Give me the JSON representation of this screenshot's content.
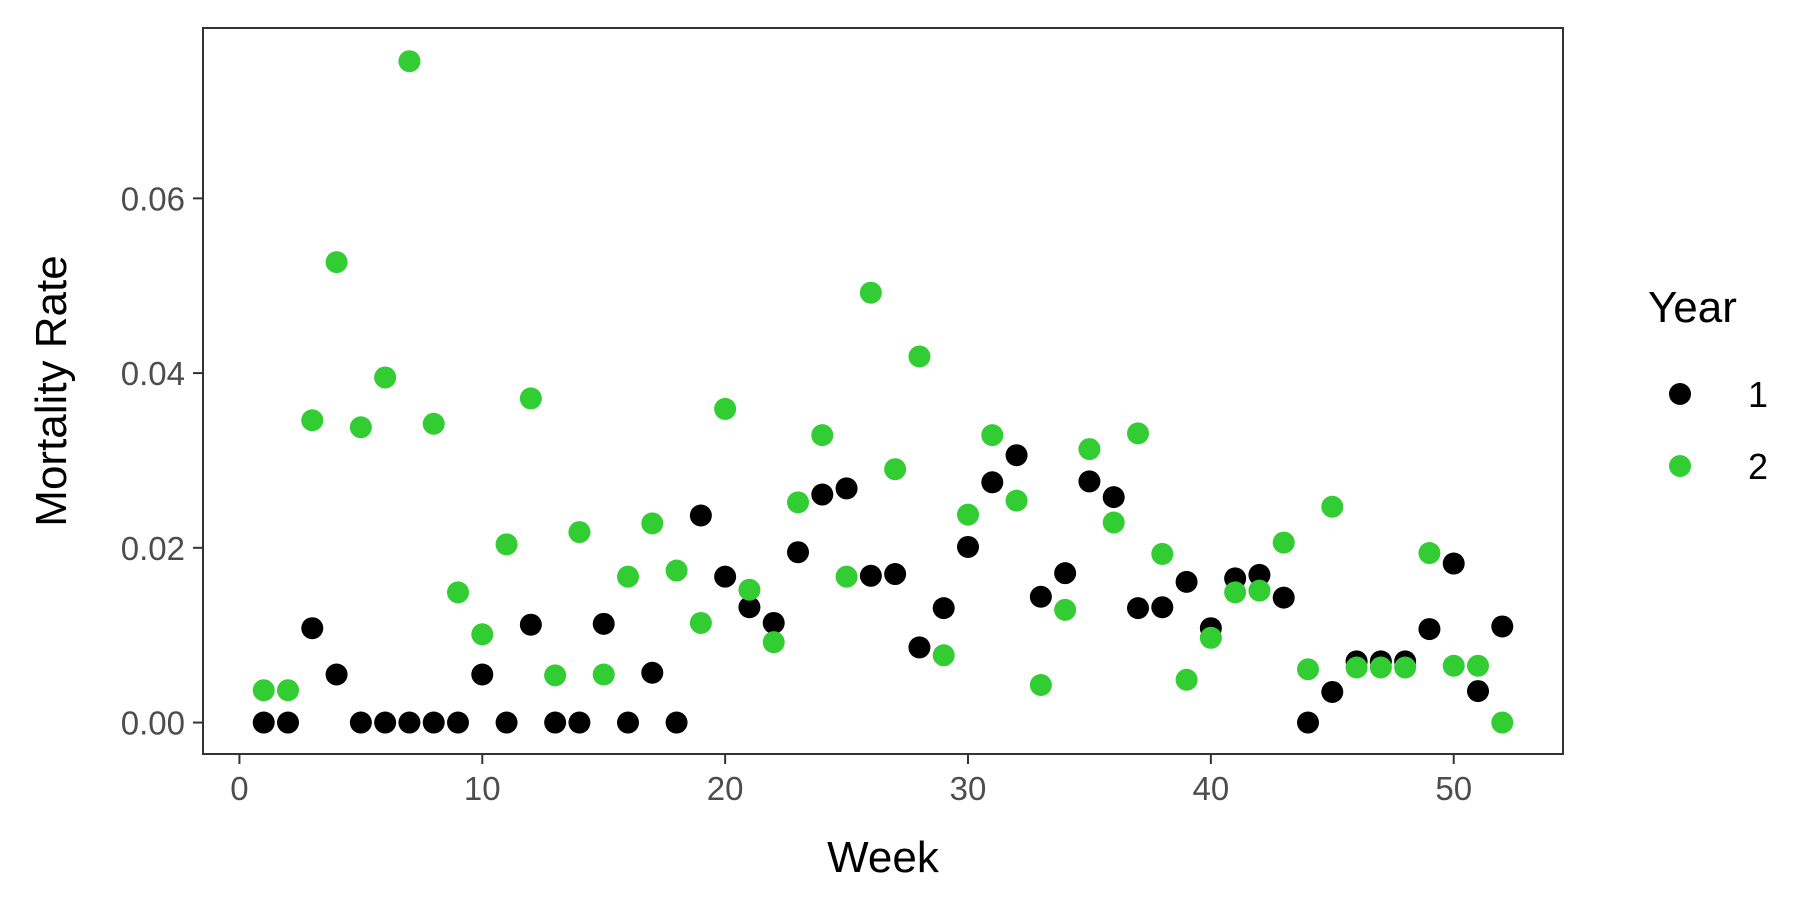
{
  "chart_data": {
    "type": "scatter",
    "xlabel": "Week",
    "ylabel": "Mortality Rate",
    "xlim": [
      -1.5,
      54.5
    ],
    "ylim": [
      -0.0036,
      0.0795
    ],
    "xticks": [
      0,
      10,
      20,
      30,
      40,
      50
    ],
    "yticks": [
      0.0,
      0.02,
      0.04,
      0.06
    ],
    "ytick_labels": [
      "0.00",
      "0.02",
      "0.04",
      "0.06"
    ],
    "grid": false,
    "legend": {
      "title": "Year",
      "placement": "right"
    },
    "series": [
      {
        "name": "1",
        "color": "#000000",
        "x": [
          1,
          2,
          3,
          4,
          5,
          6,
          7,
          8,
          9,
          10,
          11,
          12,
          13,
          14,
          15,
          16,
          17,
          18,
          19,
          20,
          21,
          22,
          23,
          24,
          25,
          26,
          27,
          28,
          29,
          30,
          31,
          32,
          33,
          34,
          35,
          36,
          37,
          38,
          39,
          40,
          41,
          42,
          43,
          44,
          45,
          46,
          47,
          48,
          49,
          50,
          51,
          52
        ],
        "y": [
          0.0,
          0.0,
          0.0108,
          0.0055,
          0.0,
          0.0,
          0.0,
          0.0,
          0.0,
          0.0055,
          0.0,
          0.0112,
          0.0,
          0.0,
          0.0113,
          0.0,
          0.0057,
          0.0,
          0.0237,
          0.0167,
          0.0132,
          0.0114,
          0.0195,
          0.0261,
          0.0268,
          0.0168,
          0.017,
          0.0086,
          0.0131,
          0.0201,
          0.0275,
          0.0306,
          0.0144,
          0.0171,
          0.0276,
          0.0258,
          0.0131,
          0.0132,
          0.0161,
          0.0108,
          0.0165,
          0.0169,
          0.0143,
          0.0,
          0.0035,
          0.007,
          0.007,
          0.007,
          0.0107,
          0.0182,
          0.0036,
          0.011
        ]
      },
      {
        "name": "2",
        "color": "#32cd32",
        "x": [
          1,
          2,
          3,
          4,
          5,
          6,
          7,
          8,
          9,
          10,
          11,
          12,
          13,
          14,
          15,
          16,
          17,
          18,
          19,
          20,
          21,
          22,
          23,
          24,
          25,
          26,
          27,
          28,
          29,
          30,
          31,
          32,
          33,
          34,
          35,
          36,
          37,
          38,
          39,
          40,
          41,
          42,
          43,
          44,
          45,
          46,
          47,
          48,
          49,
          50,
          51,
          52
        ],
        "y": [
          0.0037,
          0.0037,
          0.0346,
          0.0527,
          0.0338,
          0.0395,
          0.0757,
          0.0342,
          0.0149,
          0.0101,
          0.0204,
          0.0371,
          0.0054,
          0.0218,
          0.0055,
          0.0167,
          0.0228,
          0.0174,
          0.0114,
          0.0359,
          0.0152,
          0.0092,
          0.0252,
          0.0329,
          0.0167,
          0.0492,
          0.029,
          0.0419,
          0.0077,
          0.0238,
          0.0329,
          0.0254,
          0.0043,
          0.0129,
          0.0313,
          0.0229,
          0.0331,
          0.0193,
          0.0049,
          0.0097,
          0.0149,
          0.0151,
          0.0206,
          0.0061,
          0.0247,
          0.0063,
          0.0063,
          0.0063,
          0.0194,
          0.0065,
          0.0065,
          0.0
        ]
      }
    ]
  }
}
